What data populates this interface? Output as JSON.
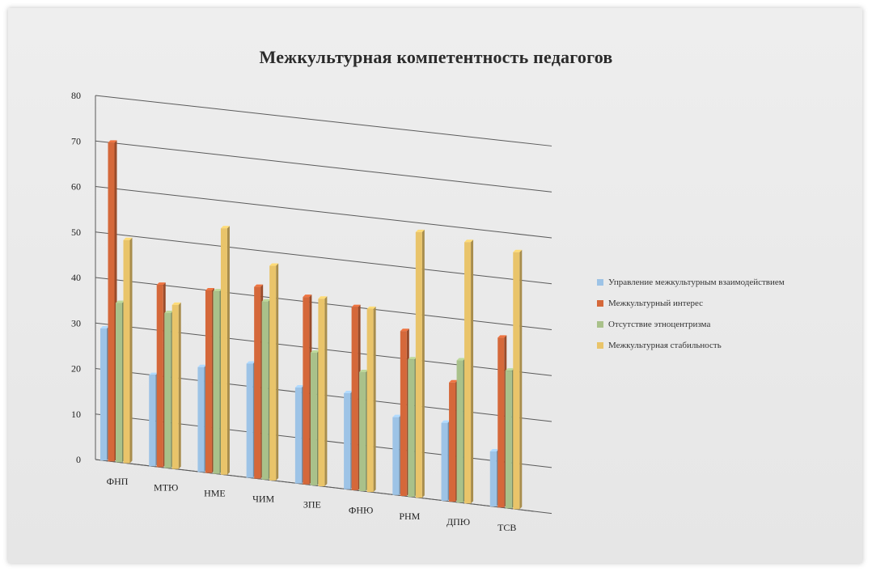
{
  "chart_data": {
    "type": "bar",
    "title": "Межкультурная компетентность педагогов",
    "xlabel": "",
    "ylabel": "",
    "ylim": [
      0,
      80
    ],
    "yticks": [
      0,
      10,
      20,
      30,
      40,
      50,
      60,
      70,
      80
    ],
    "categories": [
      "ФНП",
      "МТЮ",
      "НМЕ",
      "ЧИМ",
      "ЗПЕ",
      "ФНЮ",
      "РНМ",
      "ДПЮ",
      "ТСВ"
    ],
    "series": [
      {
        "name": "Управление межкультурным взаимодействием",
        "color": "#9dc3e6",
        "values": [
          29,
          20,
          23,
          25,
          21,
          21,
          17,
          17,
          12
        ]
      },
      {
        "name": "Межкультурный интерес",
        "color": "#d5683a",
        "values": [
          70,
          40,
          40,
          42,
          41,
          40,
          36,
          26,
          37
        ]
      },
      {
        "name": "Отсутствие этноцентризма",
        "color": "#a9c18a",
        "values": [
          35,
          34,
          40,
          39,
          29,
          26,
          30,
          31,
          30
        ]
      },
      {
        "name": "Межкультурная стабильность",
        "color": "#e9c46a",
        "values": [
          49,
          36,
          54,
          47,
          41,
          40,
          58,
          57,
          56
        ]
      }
    ],
    "grid": true,
    "legend_position": "right"
  }
}
